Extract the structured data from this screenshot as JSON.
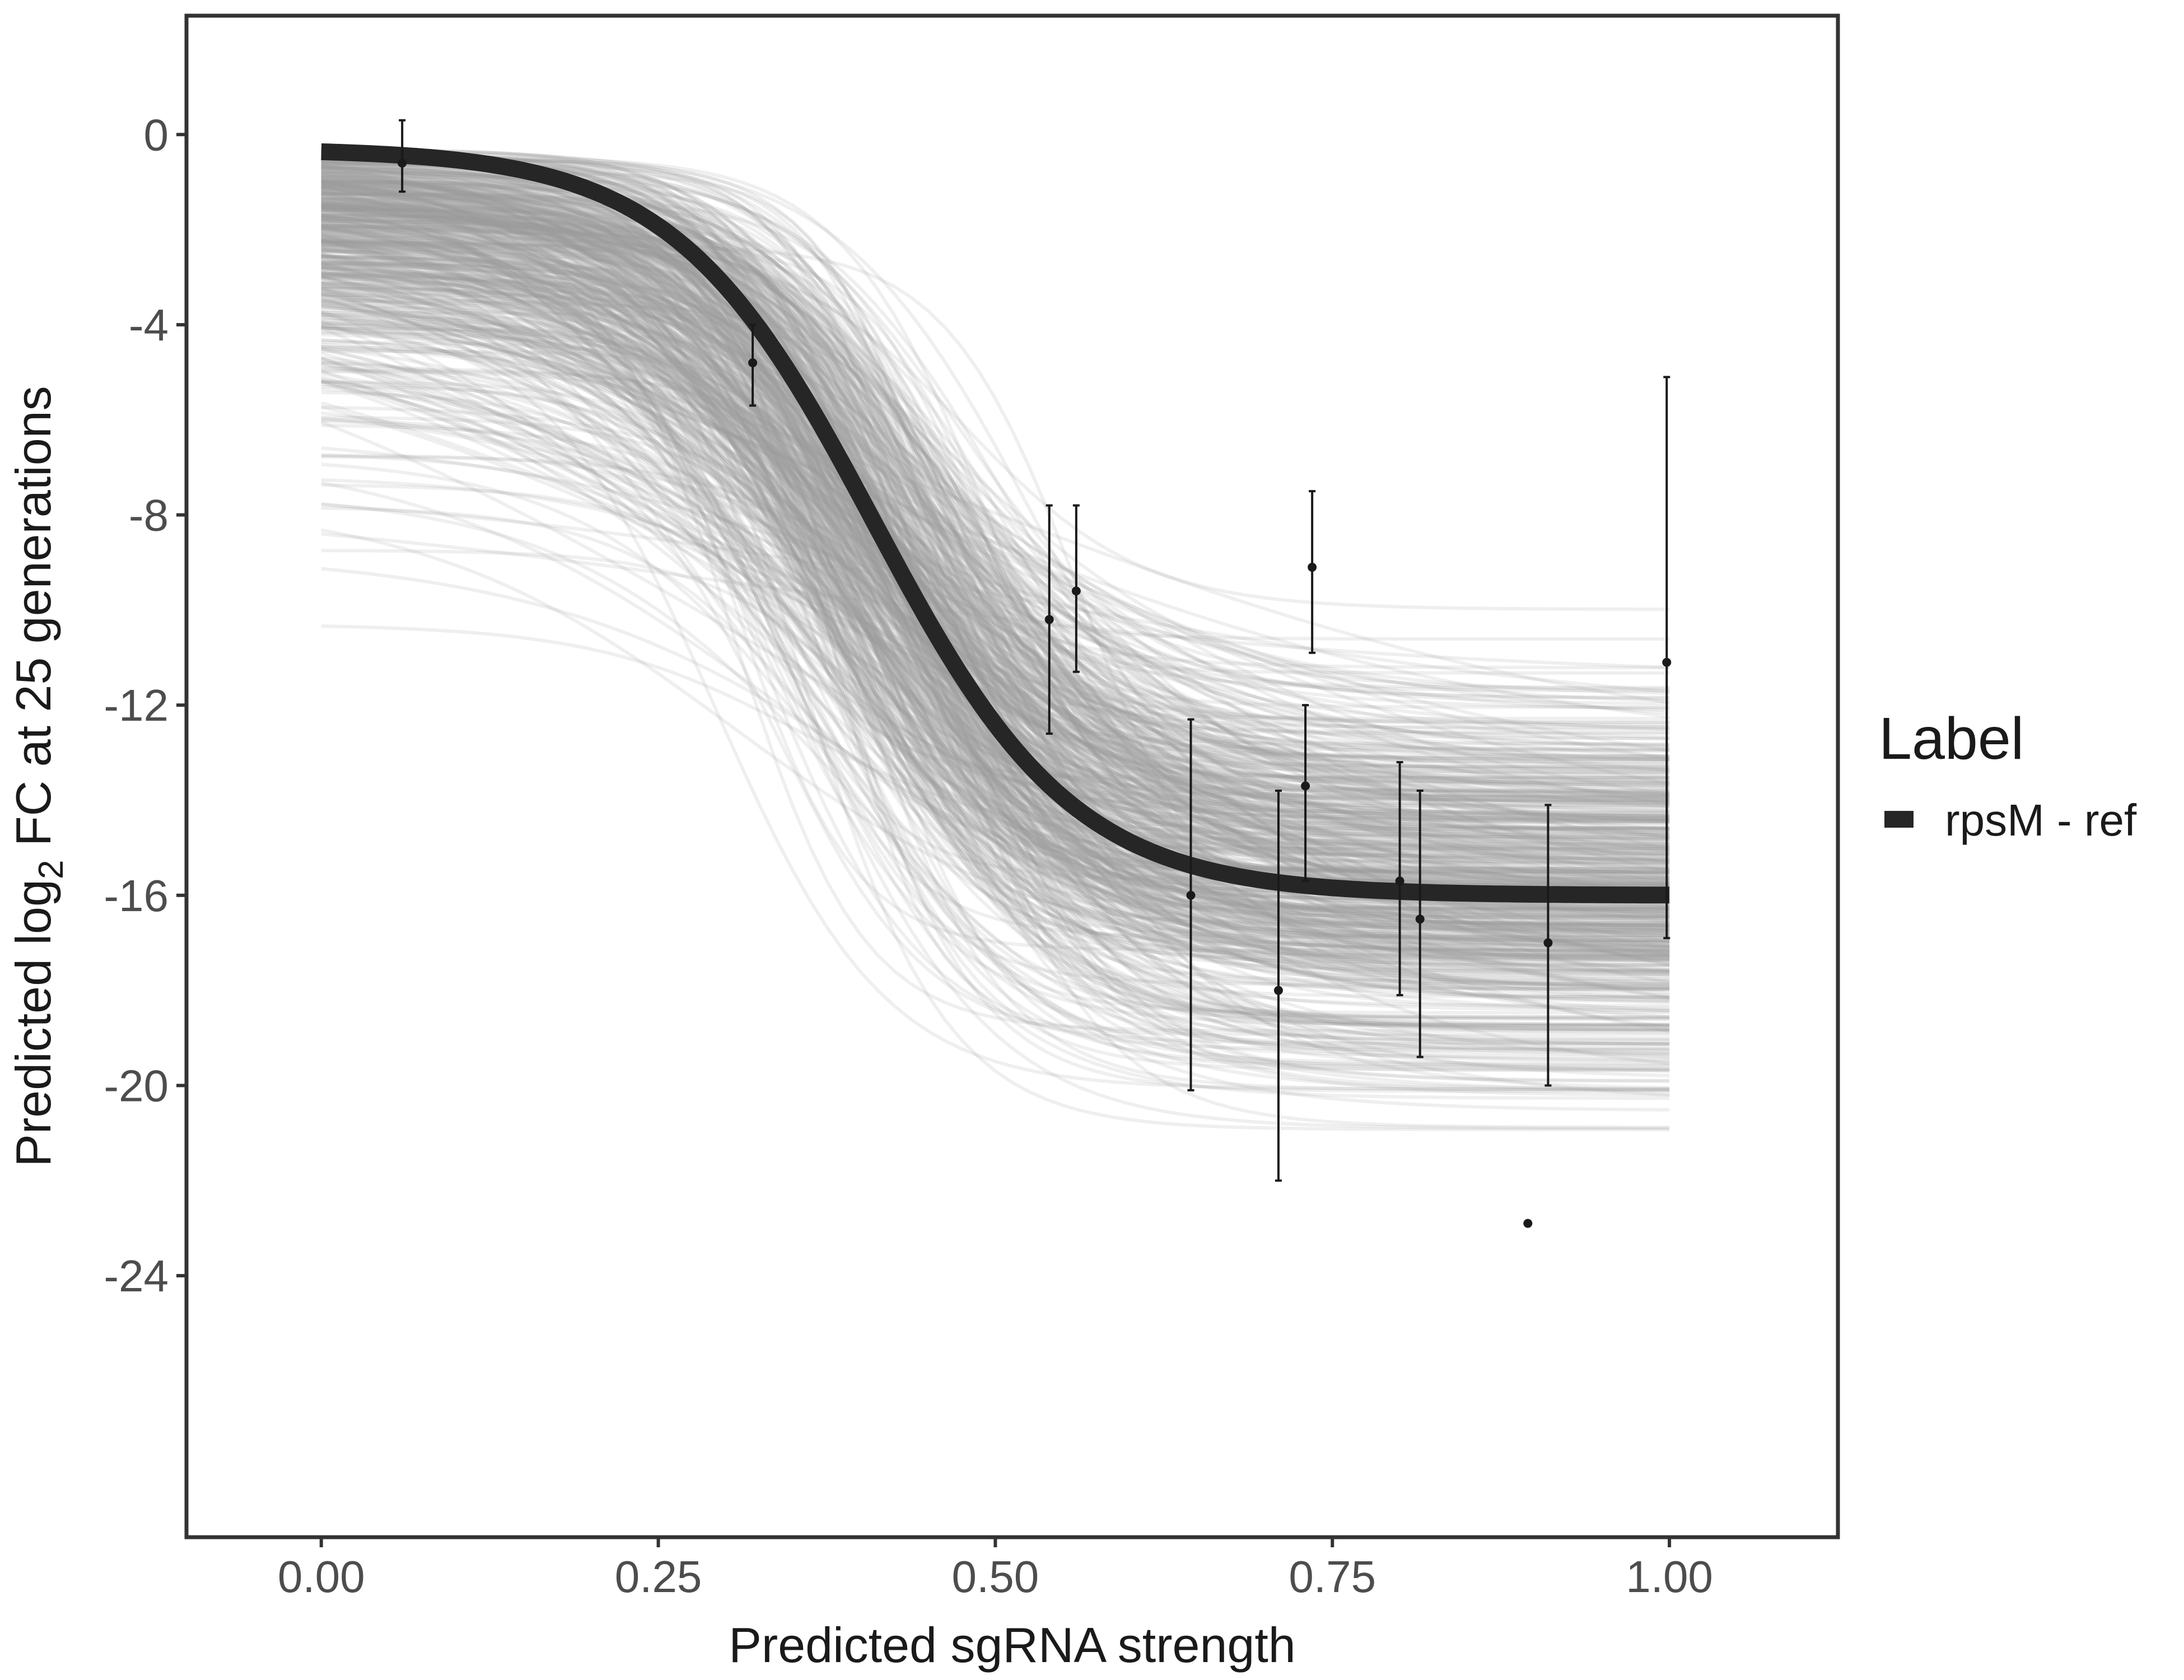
{
  "chart_data": {
    "type": "line",
    "title": "",
    "xlabel": "Predicted sgRNA strength",
    "ylabel_prefix": "Predicted  log",
    "ylabel_subscript": "2",
    "ylabel_suffix": " FC at 25 generations",
    "xlim": [
      -0.1,
      1.125
    ],
    "ylim": [
      -29.5,
      2.5
    ],
    "x_ticks": [
      0.0,
      0.25,
      0.5,
      0.75,
      1.0
    ],
    "x_tick_labels": [
      "0.00",
      "0.25",
      "0.50",
      "0.75",
      "1.00"
    ],
    "y_ticks": [
      0,
      -4,
      -8,
      -12,
      -16,
      -20,
      -24
    ],
    "y_tick_labels": [
      "0",
      "-4",
      "-8",
      "-12",
      "-16",
      "-20",
      "-24"
    ],
    "grid": false,
    "legend": {
      "title": "Label",
      "position": "right",
      "entries": [
        {
          "name": "rpsM - ref",
          "color": "#262626"
        }
      ]
    },
    "fit_curve": {
      "name": "rpsM - ref",
      "color": "#262626",
      "model": "logistic",
      "top": -0.3,
      "bottom": -16.0,
      "midpoint": 0.41,
      "slope": 13.5
    },
    "posterior_draws": {
      "count": 600,
      "color": "#999999",
      "opacity": 0.16
    },
    "points": [
      {
        "x": 0.06,
        "y": -0.6,
        "ymin": -1.2,
        "ymax": 0.3
      },
      {
        "x": 0.32,
        "y": -4.8,
        "ymin": -5.7,
        "ymax": -4.0
      },
      {
        "x": 0.54,
        "y": -10.2,
        "ymin": -12.6,
        "ymax": -7.8
      },
      {
        "x": 0.56,
        "y": -9.6,
        "ymin": -11.3,
        "ymax": -7.8
      },
      {
        "x": 0.645,
        "y": -16.0,
        "ymin": -20.1,
        "ymax": -12.3
      },
      {
        "x": 0.71,
        "y": -18.0,
        "ymin": -22.0,
        "ymax": -13.8
      },
      {
        "x": 0.73,
        "y": -13.7,
        "ymin": -15.7,
        "ymax": -12.0
      },
      {
        "x": 0.735,
        "y": -9.1,
        "ymin": -10.9,
        "ymax": -7.5
      },
      {
        "x": 0.8,
        "y": -15.7,
        "ymin": -18.1,
        "ymax": -13.2
      },
      {
        "x": 0.815,
        "y": -16.5,
        "ymin": -19.4,
        "ymax": -13.8
      },
      {
        "x": 0.895,
        "y": -22.9,
        "ymin": null,
        "ymax": null
      },
      {
        "x": 0.91,
        "y": -17.0,
        "ymin": -20.0,
        "ymax": -14.1
      },
      {
        "x": 0.998,
        "y": -11.1,
        "ymin": -16.9,
        "ymax": -5.1
      }
    ]
  }
}
